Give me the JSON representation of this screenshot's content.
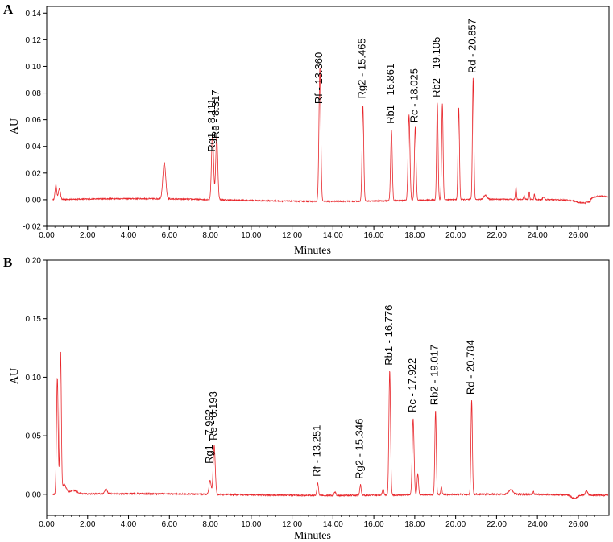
{
  "chart_data": [
    {
      "type": "line",
      "panel_label": "A",
      "xlabel": "Minutes",
      "ylabel": "AU",
      "xlim": [
        0,
        27.5
      ],
      "ylim": [
        -0.02,
        0.145
      ],
      "x_ticks": [
        0,
        2,
        4,
        6,
        8,
        10,
        12,
        14,
        16,
        18,
        20,
        22,
        24,
        26
      ],
      "x_tick_labels": [
        "0.00",
        "2.00",
        "4.00",
        "6.00",
        "8.00",
        "10.00",
        "12.00",
        "14.00",
        "16.00",
        "18.00",
        "20.00",
        "22.00",
        "24.00",
        "26.00"
      ],
      "y_ticks": [
        -0.02,
        0,
        0.02,
        0.04,
        0.06,
        0.08,
        0.1,
        0.12,
        0.14
      ],
      "y_tick_labels": [
        "-0.02",
        "0.00",
        "0.02",
        "0.04",
        "0.06",
        "0.08",
        "0.10",
        "0.12",
        "0.14"
      ],
      "color": "#e8262b",
      "baseline": 0.0,
      "peaks": [
        {
          "rt": 0.45,
          "h": 0.011,
          "w": 0.04
        },
        {
          "rt": 0.62,
          "h": 0.008,
          "w": 0.05
        },
        {
          "rt": 5.75,
          "h": 0.027,
          "w": 0.07
        },
        {
          "rt": 8.111,
          "h": 0.05,
          "w": 0.05
        },
        {
          "rt": 8.317,
          "h": 0.047,
          "w": 0.05
        },
        {
          "rt": 13.36,
          "h": 0.1,
          "w": 0.045
        },
        {
          "rt": 15.465,
          "h": 0.072,
          "w": 0.04
        },
        {
          "rt": 16.861,
          "h": 0.053,
          "w": 0.04
        },
        {
          "rt": 17.72,
          "h": 0.064,
          "w": 0.045
        },
        {
          "rt": 18.025,
          "h": 0.055,
          "w": 0.04
        },
        {
          "rt": 19.105,
          "h": 0.073,
          "w": 0.035
        },
        {
          "rt": 19.35,
          "h": 0.072,
          "w": 0.035
        },
        {
          "rt": 20.15,
          "h": 0.069,
          "w": 0.035
        },
        {
          "rt": 20.857,
          "h": 0.091,
          "w": 0.035
        },
        {
          "rt": 21.45,
          "h": 0.003,
          "w": 0.08
        },
        {
          "rt": 22.95,
          "h": 0.009,
          "w": 0.025
        },
        {
          "rt": 23.35,
          "h": 0.003,
          "w": 0.03
        },
        {
          "rt": 23.6,
          "h": 0.006,
          "w": 0.02
        },
        {
          "rt": 23.85,
          "h": 0.004,
          "w": 0.02
        },
        {
          "rt": 24.3,
          "h": 0.002,
          "w": 0.04
        }
      ],
      "annotations": [
        {
          "label": "Rg1 - 8.111",
          "rt": 8.111,
          "y": 0.034
        },
        {
          "label": "Re - 8.317",
          "rt": 8.317,
          "y": 0.044
        },
        {
          "label": "Rf - 13.360",
          "rt": 13.36,
          "y": 0.07
        },
        {
          "label": "Rg2 - 15.465",
          "rt": 15.465,
          "y": 0.074
        },
        {
          "label": "Rb1 - 16.861",
          "rt": 16.861,
          "y": 0.055
        },
        {
          "label": "Rc - 18.025",
          "rt": 18.025,
          "y": 0.056
        },
        {
          "label": "Rb2 - 19.105",
          "rt": 19.105,
          "y": 0.075
        },
        {
          "label": "Rd - 20.857",
          "rt": 20.857,
          "y": 0.093
        }
      ]
    },
    {
      "type": "line",
      "panel_label": "B",
      "xlabel": "Minutes",
      "ylabel": "AU",
      "xlim": [
        0,
        27.5
      ],
      "ylim": [
        -0.018,
        0.2
      ],
      "x_ticks": [
        0,
        2,
        4,
        6,
        8,
        10,
        12,
        14,
        16,
        18,
        20,
        22,
        24,
        26
      ],
      "x_tick_labels": [
        "0.00",
        "2.00",
        "4.00",
        "6.00",
        "8.00",
        "10.00",
        "12.00",
        "14.00",
        "16.00",
        "18.00",
        "20.00",
        "22.00",
        "24.00",
        "26.00"
      ],
      "y_ticks": [
        0,
        0.05,
        0.1,
        0.15,
        0.2
      ],
      "y_tick_labels": [
        "0.00",
        "0.05",
        "0.10",
        "0.15",
        "0.20"
      ],
      "color": "#e8262b",
      "baseline": 0.0,
      "peaks": [
        {
          "rt": 0.52,
          "h": 0.1,
          "w": 0.04
        },
        {
          "rt": 0.68,
          "h": 0.12,
          "w": 0.035
        },
        {
          "rt": 0.85,
          "h": 0.008,
          "w": 0.1
        },
        {
          "rt": 1.3,
          "h": 0.003,
          "w": 0.2
        },
        {
          "rt": 2.9,
          "h": 0.004,
          "w": 0.06
        },
        {
          "rt": 7.992,
          "h": 0.012,
          "w": 0.05
        },
        {
          "rt": 8.193,
          "h": 0.042,
          "w": 0.05
        },
        {
          "rt": 13.251,
          "h": 0.011,
          "w": 0.035
        },
        {
          "rt": 14.1,
          "h": 0.003,
          "w": 0.04
        },
        {
          "rt": 15.346,
          "h": 0.009,
          "w": 0.035
        },
        {
          "rt": 16.45,
          "h": 0.005,
          "w": 0.04
        },
        {
          "rt": 16.776,
          "h": 0.106,
          "w": 0.04
        },
        {
          "rt": 17.922,
          "h": 0.065,
          "w": 0.045
        },
        {
          "rt": 18.15,
          "h": 0.018,
          "w": 0.035
        },
        {
          "rt": 19.017,
          "h": 0.072,
          "w": 0.035
        },
        {
          "rt": 19.3,
          "h": 0.007,
          "w": 0.03
        },
        {
          "rt": 20.784,
          "h": 0.081,
          "w": 0.035
        },
        {
          "rt": 22.7,
          "h": 0.004,
          "w": 0.1
        },
        {
          "rt": 23.8,
          "h": 0.003,
          "w": 0.02
        },
        {
          "rt": 26.4,
          "h": 0.004,
          "w": 0.05
        }
      ],
      "annotations": [
        {
          "label": "Rg1 - 7.992",
          "rt": 7.992,
          "y": 0.024
        },
        {
          "label": "Re - 8.193",
          "rt": 8.193,
          "y": 0.044
        },
        {
          "label": "Rf - 13.251",
          "rt": 13.251,
          "y": 0.013
        },
        {
          "label": "Rg2 - 15.346",
          "rt": 15.346,
          "y": 0.011
        },
        {
          "label": "Rb1 - 16.776",
          "rt": 16.776,
          "y": 0.108
        },
        {
          "label": "Rc - 17.922",
          "rt": 17.922,
          "y": 0.068
        },
        {
          "label": "Rb2 - 19.017",
          "rt": 19.017,
          "y": 0.074
        },
        {
          "label": "Rd - 20.784",
          "rt": 20.784,
          "y": 0.083
        }
      ]
    }
  ]
}
